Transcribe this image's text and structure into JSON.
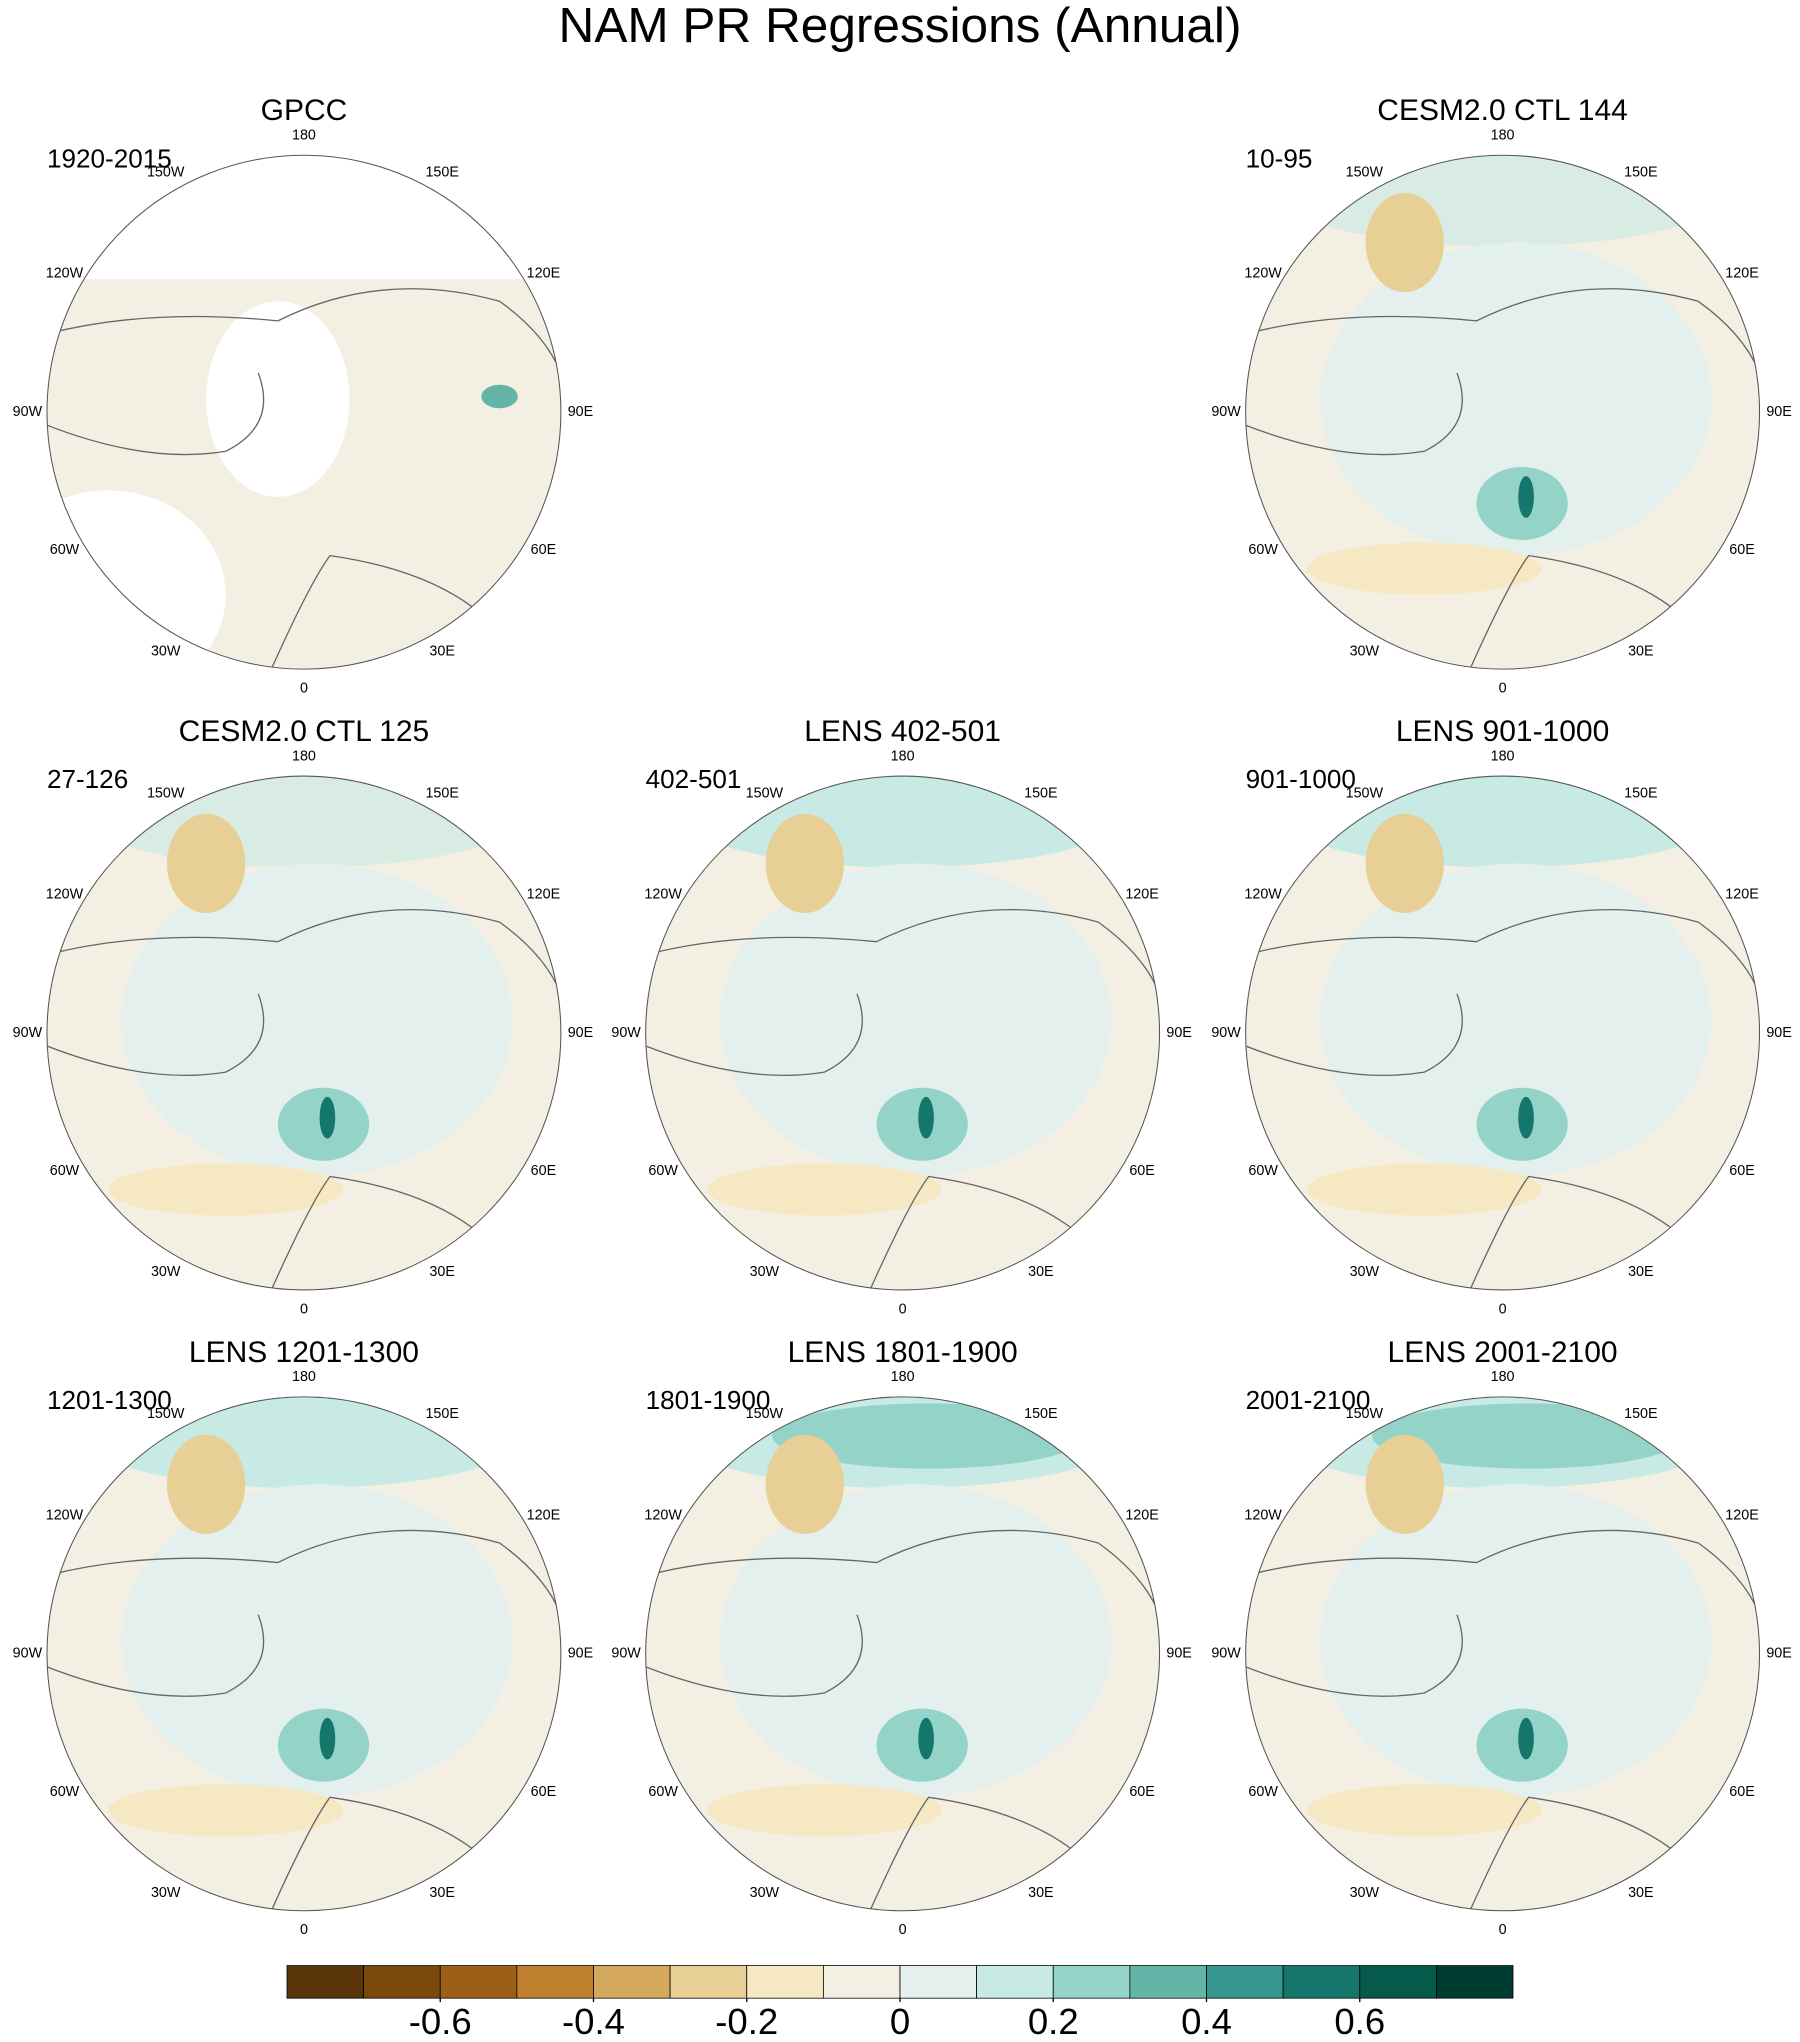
{
  "title": "NAM PR Regressions (Annual)",
  "longitude_labels": [
    "180",
    "150E",
    "120E",
    "90E",
    "60E",
    "30E",
    "0",
    "30W",
    "60W",
    "90W",
    "120W",
    "150W"
  ],
  "panels": [
    {
      "title": "GPCC",
      "period": "1920-2015"
    },
    {
      "title": "CESM2.0 CTL 144",
      "period": "10-95"
    },
    {
      "title": "CESM2.0 CTL 125",
      "period": "27-126"
    },
    {
      "title": "LENS 402-501",
      "period": "402-501"
    },
    {
      "title": "LENS 901-1000",
      "period": "901-1000"
    },
    {
      "title": "LENS 1201-1300",
      "period": "1201-1300"
    },
    {
      "title": "LENS 1801-1900",
      "period": "1801-1900"
    },
    {
      "title": "LENS 2001-2100",
      "period": "2001-2100"
    }
  ],
  "colorbar": {
    "lim": [
      -0.8,
      0.8
    ],
    "colors": [
      "#5a3509",
      "#7a4a0c",
      "#9c5f17",
      "#bf812d",
      "#d5a95d",
      "#e8cf96",
      "#f6e8c3",
      "#f3efe2",
      "#e3f0ee",
      "#c7eae5",
      "#94d4c8",
      "#64b5a8",
      "#35978f",
      "#15766c",
      "#065a4c",
      "#003c30"
    ],
    "ticks": [
      -0.6,
      -0.4,
      -0.2,
      0,
      0.2,
      0.4,
      0.6
    ]
  }
}
